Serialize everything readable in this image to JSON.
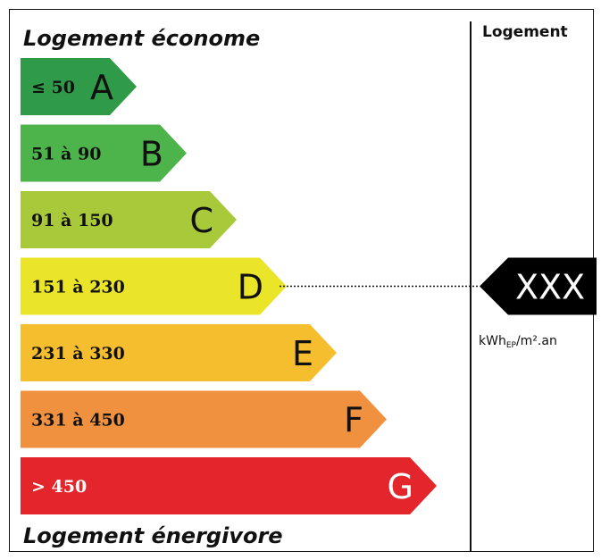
{
  "title_top": "Logement économe",
  "title_bottom": "Logement énergivore",
  "column_header": "Logement",
  "indicator": {
    "value_label": "XXX",
    "class": "D",
    "unit_prefix": "kWh",
    "unit_sub": "EP",
    "unit_suffix": "/m².an"
  },
  "colors": {
    "A": "#2f9a48",
    "B": "#4db34b",
    "C": "#a8ca3a",
    "D": "#ebe52a",
    "E": "#f5be2e",
    "F": "#f0913f",
    "G": "#e3262b",
    "indicator": "#000000"
  },
  "chart_data": {
    "type": "bar",
    "categories": [
      "A",
      "B",
      "C",
      "D",
      "E",
      "F",
      "G"
    ],
    "range_labels": [
      "≤ 50",
      "51 à 90",
      "91 à 150",
      "151 à 230",
      "231 à 330",
      "331 à 450",
      "> 450"
    ],
    "lower_bounds": [
      null,
      51,
      91,
      151,
      231,
      331,
      450
    ],
    "upper_bounds": [
      50,
      90,
      150,
      230,
      330,
      450,
      null
    ],
    "label_colors": [
      "#111111",
      "#111111",
      "#111111",
      "#111111",
      "#111111",
      "#111111",
      "#ffffff"
    ]
  }
}
